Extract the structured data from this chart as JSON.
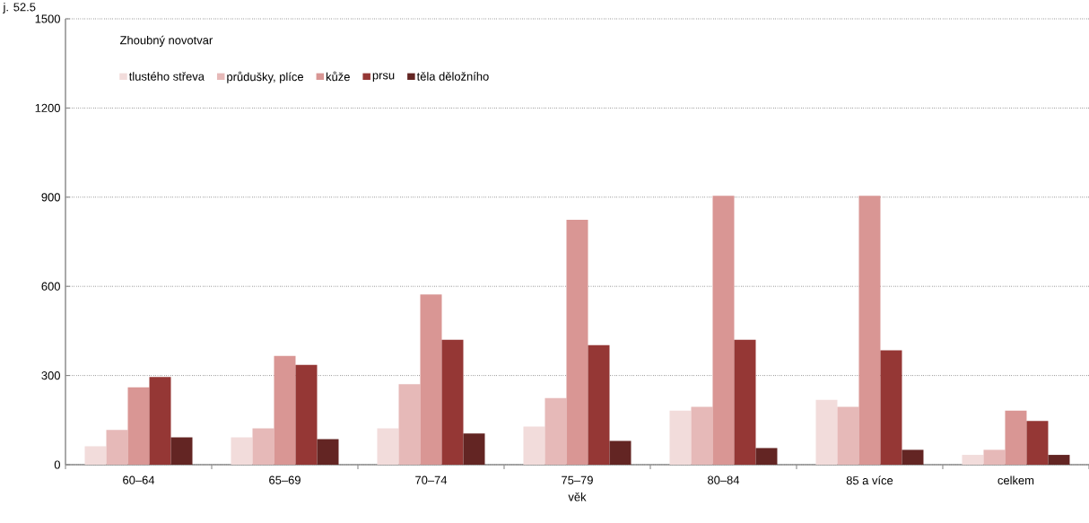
{
  "chart_data": {
    "type": "bar",
    "xlabel": "věk",
    "legend_title": "Zhoubný novotvar",
    "annotations": [
      "j. 52.5"
    ],
    "categories": [
      "60–64",
      "65–69",
      "70–74",
      "75–79",
      "80–84",
      "85 a více",
      "celkem"
    ],
    "series": [
      {
        "name": "tlustého střeva",
        "color": "#f2dcdb",
        "values": [
          62,
          92,
          122,
          128,
          182,
          218,
          33
        ]
      },
      {
        "name": "průdušky, plíce",
        "color": "#e6b9b8",
        "values": [
          117,
          122,
          271,
          224,
          195,
          195,
          50
        ]
      },
      {
        "name": "kůže",
        "color": "#d99694",
        "values": [
          260,
          366,
          573,
          824,
          905,
          905,
          182
        ]
      },
      {
        "name": "prsu",
        "color": "#953735",
        "values": [
          295,
          336,
          420,
          402,
          420,
          385,
          147
        ]
      },
      {
        "name": "těla děložního",
        "color": "#632523",
        "values": [
          92,
          86,
          105,
          80,
          56,
          50,
          33
        ]
      }
    ],
    "ylim": [
      0,
      1500
    ],
    "yticks": [
      0,
      300,
      600,
      900,
      1200,
      1500
    ],
    "grid": "y",
    "legend": "top left"
  }
}
